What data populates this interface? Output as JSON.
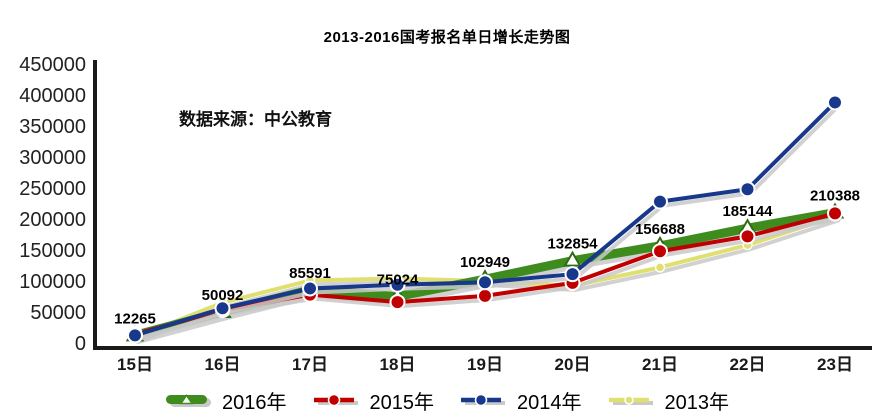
{
  "chart": {
    "title": "2013-2016国考报名单日增长走势图",
    "source": "数据来源：中公教育"
  },
  "chart_data": {
    "type": "line",
    "title": "2013-2016国考报名单日增长走势图",
    "annotation": "数据来源：中公教育",
    "categories": [
      "15日",
      "16日",
      "17日",
      "18日",
      "19日",
      "20日",
      "21日",
      "22日",
      "23日"
    ],
    "series": [
      {
        "name": "2016年",
        "color": "#3f8c1e",
        "marker": "triangle",
        "line_width": 9,
        "values": [
          12265,
          50092,
          85591,
          75024,
          102949,
          132854,
          156688,
          185144,
          210388
        ],
        "labeled": true
      },
      {
        "name": "2015年",
        "color": "#c00000",
        "marker": "circle",
        "line_width": 4,
        "values": [
          14500,
          53000,
          78000,
          66000,
          76000,
          97000,
          148000,
          172000,
          209000
        ]
      },
      {
        "name": "2014年",
        "color": "#18388c",
        "marker": "circle",
        "line_width": 4,
        "values": [
          12265,
          56000,
          88000,
          94000,
          98000,
          111000,
          228000,
          248000,
          388000
        ]
      },
      {
        "name": "2013年",
        "color": "#e0e070",
        "marker": "small-circle",
        "line_width": 4,
        "values": [
          9000,
          65000,
          101000,
          104000,
          100000,
          92000,
          122000,
          158000,
          204000
        ]
      }
    ],
    "data_labels": [
      12265,
      50092,
      85591,
      75024,
      102949,
      132854,
      156688,
      185144,
      210388
    ],
    "data_label_series": "2016年",
    "ylim": [
      0,
      450000
    ],
    "ytick_labels": [
      0,
      50000,
      100000,
      150000,
      200000,
      250000,
      300000,
      350000,
      400000,
      450000
    ],
    "grid": false,
    "legend_position": "bottom",
    "shadow_color": "#c9c9c9",
    "axis_color": "#1a1a1a"
  }
}
